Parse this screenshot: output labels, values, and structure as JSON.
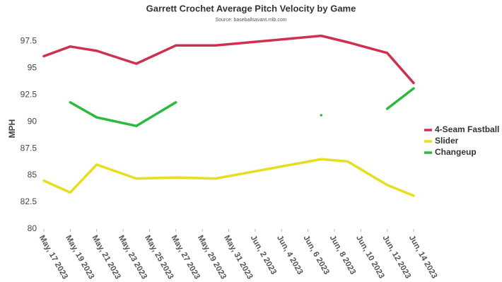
{
  "chart_data": {
    "type": "line",
    "title": "Garrett Crochet Average Pitch Velocity by Game",
    "subtitle": "Source: baseballsavant.mlb.com",
    "y_label": "MPH",
    "x": [
      "2023-05-17",
      "2023-05-19",
      "2023-05-21",
      "2023-05-24",
      "2023-05-27",
      "2023-05-30",
      "2023-06-07",
      "2023-06-09",
      "2023-06-12",
      "2023-06-14"
    ],
    "series": [
      {
        "name": "4-Seam Fastball",
        "color": "#d0304f",
        "values": [
          96.1,
          97.0,
          96.6,
          95.4,
          97.1,
          97.1,
          98.0,
          97.4,
          96.4,
          93.6
        ]
      },
      {
        "name": "Slider",
        "color": "#e6de1e",
        "values": [
          84.5,
          83.4,
          86.0,
          84.7,
          84.8,
          84.7,
          86.5,
          86.3,
          84.1,
          83.1
        ]
      },
      {
        "name": "Changeup",
        "color": "#2cb940",
        "values": [
          null,
          91.8,
          90.4,
          89.6,
          91.8,
          null,
          90.6,
          null,
          91.2,
          93.1
        ]
      }
    ],
    "xlim": [
      "2023-05-17",
      "2023-06-14"
    ],
    "xticks": [
      {
        "value": "2023-05-17",
        "label": "May, 17 2023"
      },
      {
        "value": "2023-05-19",
        "label": "May, 19 2023"
      },
      {
        "value": "2023-05-21",
        "label": "May, 21 2023"
      },
      {
        "value": "2023-05-23",
        "label": "May, 23 2023"
      },
      {
        "value": "2023-05-25",
        "label": "May, 25 2023"
      },
      {
        "value": "2023-05-27",
        "label": "May, 27 2023"
      },
      {
        "value": "2023-05-29",
        "label": "May, 29 2023"
      },
      {
        "value": "2023-05-31",
        "label": "May, 31 2023"
      },
      {
        "value": "2023-06-02",
        "label": "Jun, 2 2023"
      },
      {
        "value": "2023-06-04",
        "label": "Jun, 4 2023"
      },
      {
        "value": "2023-06-06",
        "label": "Jun, 6 2023"
      },
      {
        "value": "2023-06-08",
        "label": "Jun, 8 2023"
      },
      {
        "value": "2023-06-10",
        "label": "Jun, 10 2023"
      },
      {
        "value": "2023-06-12",
        "label": "Jun, 12 2023"
      },
      {
        "value": "2023-06-14",
        "label": "Jun, 14 2023"
      }
    ],
    "ylim": [
      80,
      98.7
    ],
    "yticks": [
      80,
      82.5,
      85,
      87.5,
      90,
      92.5,
      95,
      97.5
    ],
    "legend": "right"
  }
}
